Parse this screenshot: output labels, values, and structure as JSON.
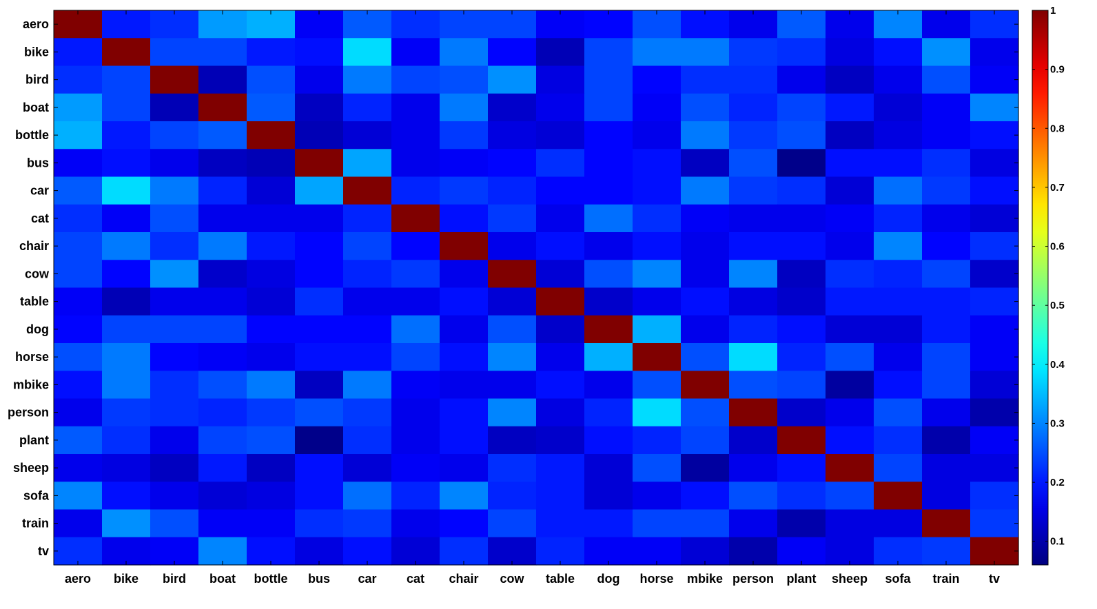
{
  "chart_data": {
    "type": "heatmap",
    "title": "",
    "xlabel": "",
    "ylabel": "",
    "categories": [
      "aero",
      "bike",
      "bird",
      "boat",
      "bottle",
      "bus",
      "car",
      "cat",
      "chair",
      "cow",
      "table",
      "dog",
      "horse",
      "mbike",
      "person",
      "plant",
      "sheep",
      "sofa",
      "train",
      "tv"
    ],
    "colormap": "jet",
    "vmin": 0.06,
    "vmax": 1,
    "colorbar": {
      "ticks": [
        0.1,
        0.2,
        0.3,
        0.4,
        0.5,
        0.6,
        0.7,
        0.8,
        0.9,
        1
      ],
      "tick_labels": [
        "0.1",
        "0.2",
        "0.3",
        "0.4",
        "0.5",
        "0.6",
        "0.7",
        "0.8",
        "0.9",
        "1"
      ],
      "placement": "right"
    },
    "grid": false,
    "values": [
      [
        1.0,
        0.2,
        0.22,
        0.32,
        0.34,
        0.17,
        0.26,
        0.22,
        0.24,
        0.24,
        0.17,
        0.18,
        0.25,
        0.19,
        0.16,
        0.26,
        0.16,
        0.3,
        0.16,
        0.22
      ],
      [
        0.2,
        1.0,
        0.24,
        0.24,
        0.2,
        0.19,
        0.38,
        0.17,
        0.29,
        0.18,
        0.11,
        0.24,
        0.29,
        0.29,
        0.23,
        0.22,
        0.15,
        0.19,
        0.31,
        0.16
      ],
      [
        0.22,
        0.24,
        1.0,
        0.11,
        0.25,
        0.16,
        0.29,
        0.24,
        0.25,
        0.31,
        0.15,
        0.24,
        0.18,
        0.22,
        0.22,
        0.16,
        0.12,
        0.16,
        0.25,
        0.17
      ],
      [
        0.32,
        0.24,
        0.11,
        1.0,
        0.26,
        0.12,
        0.21,
        0.16,
        0.29,
        0.13,
        0.16,
        0.24,
        0.17,
        0.25,
        0.21,
        0.24,
        0.2,
        0.14,
        0.17,
        0.3
      ],
      [
        0.34,
        0.2,
        0.24,
        0.26,
        1.0,
        0.11,
        0.14,
        0.16,
        0.23,
        0.15,
        0.14,
        0.18,
        0.16,
        0.29,
        0.23,
        0.25,
        0.12,
        0.15,
        0.17,
        0.19
      ],
      [
        0.17,
        0.19,
        0.16,
        0.12,
        0.11,
        1.0,
        0.33,
        0.16,
        0.17,
        0.18,
        0.22,
        0.18,
        0.19,
        0.12,
        0.25,
        0.07,
        0.19,
        0.19,
        0.22,
        0.15
      ],
      [
        0.26,
        0.38,
        0.29,
        0.21,
        0.14,
        0.33,
        1.0,
        0.21,
        0.23,
        0.21,
        0.18,
        0.18,
        0.19,
        0.29,
        0.23,
        0.22,
        0.14,
        0.28,
        0.23,
        0.19
      ],
      [
        0.22,
        0.17,
        0.25,
        0.16,
        0.16,
        0.16,
        0.21,
        1.0,
        0.19,
        0.23,
        0.16,
        0.28,
        0.22,
        0.17,
        0.16,
        0.16,
        0.17,
        0.21,
        0.16,
        0.14
      ],
      [
        0.24,
        0.29,
        0.22,
        0.29,
        0.2,
        0.18,
        0.24,
        0.18,
        1.0,
        0.16,
        0.19,
        0.16,
        0.19,
        0.16,
        0.19,
        0.19,
        0.16,
        0.3,
        0.18,
        0.22
      ],
      [
        0.24,
        0.18,
        0.31,
        0.13,
        0.15,
        0.18,
        0.21,
        0.23,
        0.16,
        1.0,
        0.14,
        0.25,
        0.3,
        0.16,
        0.3,
        0.12,
        0.22,
        0.21,
        0.24,
        0.13
      ],
      [
        0.17,
        0.11,
        0.16,
        0.16,
        0.14,
        0.22,
        0.16,
        0.16,
        0.19,
        0.14,
        1.0,
        0.13,
        0.16,
        0.19,
        0.15,
        0.13,
        0.2,
        0.2,
        0.2,
        0.21
      ],
      [
        0.18,
        0.24,
        0.24,
        0.24,
        0.18,
        0.18,
        0.18,
        0.28,
        0.16,
        0.25,
        0.13,
        1.0,
        0.34,
        0.16,
        0.21,
        0.19,
        0.14,
        0.14,
        0.2,
        0.17
      ],
      [
        0.25,
        0.29,
        0.18,
        0.17,
        0.16,
        0.19,
        0.19,
        0.24,
        0.19,
        0.3,
        0.16,
        0.34,
        1.0,
        0.25,
        0.38,
        0.21,
        0.25,
        0.16,
        0.24,
        0.17
      ],
      [
        0.19,
        0.29,
        0.22,
        0.25,
        0.29,
        0.12,
        0.29,
        0.17,
        0.16,
        0.16,
        0.19,
        0.16,
        0.25,
        1.0,
        0.25,
        0.24,
        0.09,
        0.19,
        0.24,
        0.14
      ],
      [
        0.16,
        0.23,
        0.22,
        0.21,
        0.23,
        0.25,
        0.23,
        0.16,
        0.19,
        0.3,
        0.15,
        0.21,
        0.38,
        0.25,
        1.0,
        0.13,
        0.16,
        0.25,
        0.16,
        0.1
      ],
      [
        0.26,
        0.22,
        0.16,
        0.24,
        0.25,
        0.07,
        0.22,
        0.16,
        0.19,
        0.12,
        0.13,
        0.19,
        0.21,
        0.24,
        0.13,
        1.0,
        0.19,
        0.22,
        0.1,
        0.17
      ],
      [
        0.16,
        0.15,
        0.12,
        0.2,
        0.12,
        0.19,
        0.14,
        0.17,
        0.16,
        0.22,
        0.2,
        0.14,
        0.25,
        0.09,
        0.16,
        0.19,
        1.0,
        0.24,
        0.15,
        0.15
      ],
      [
        0.3,
        0.19,
        0.16,
        0.14,
        0.15,
        0.19,
        0.28,
        0.21,
        0.3,
        0.21,
        0.2,
        0.14,
        0.16,
        0.19,
        0.25,
        0.22,
        0.24,
        1.0,
        0.15,
        0.22
      ],
      [
        0.16,
        0.31,
        0.25,
        0.17,
        0.17,
        0.22,
        0.23,
        0.16,
        0.18,
        0.24,
        0.2,
        0.2,
        0.24,
        0.24,
        0.16,
        0.1,
        0.15,
        0.15,
        1.0,
        0.23
      ],
      [
        0.22,
        0.16,
        0.17,
        0.3,
        0.19,
        0.15,
        0.19,
        0.14,
        0.22,
        0.13,
        0.21,
        0.17,
        0.17,
        0.14,
        0.1,
        0.17,
        0.15,
        0.22,
        0.23,
        1.0
      ]
    ]
  }
}
